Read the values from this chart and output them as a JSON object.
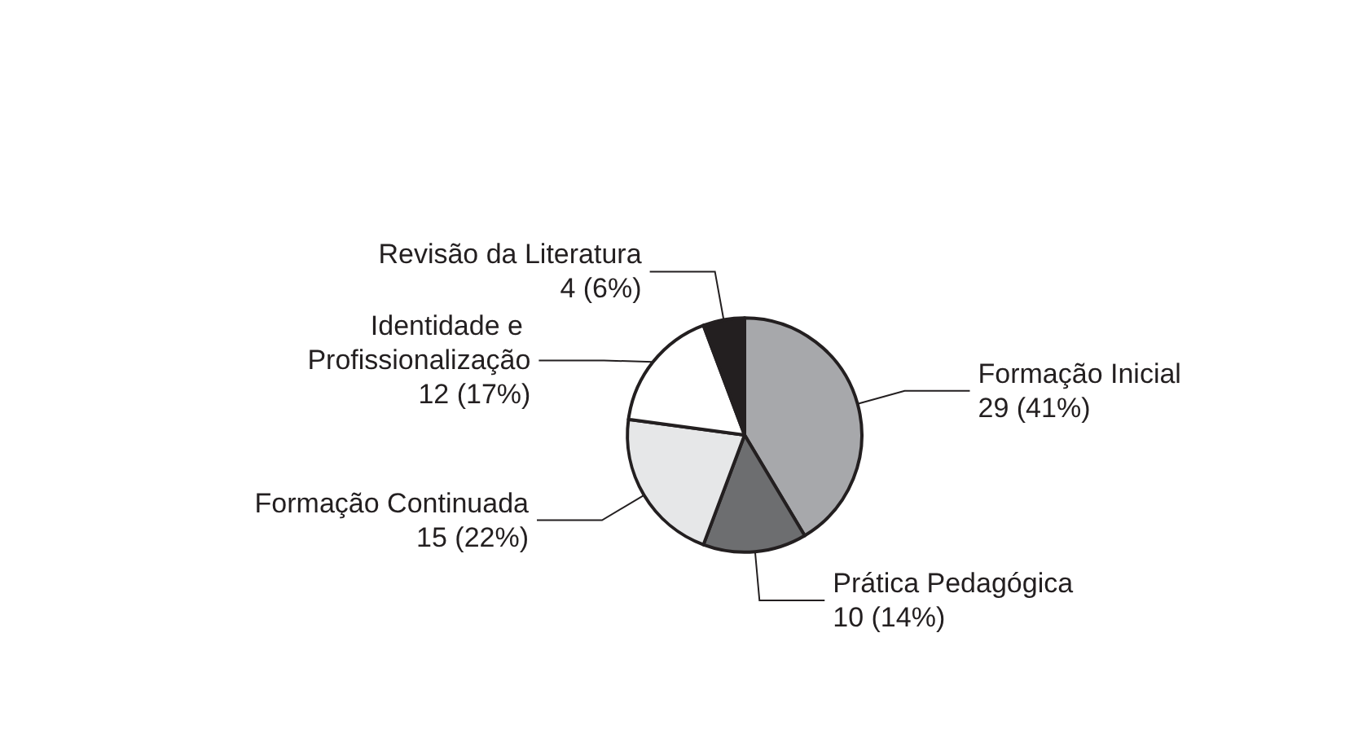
{
  "chart_data": {
    "type": "pie",
    "categories": [
      "Formação Inicial",
      "Prática Pedagógica",
      "Formação Continuada",
      "Identidade e Profissionalização",
      "Revisão da Literatura"
    ],
    "values": [
      29,
      10,
      15,
      12,
      4
    ],
    "value_labels": [
      "29 (41%)",
      "10 (14%)",
      "15 (22%)",
      "12 (17%)",
      "4 (6%)"
    ],
    "colors": [
      "#a7a8ab",
      "#6d6e70",
      "#e6e7e8",
      "#ffffff",
      "#231f20"
    ],
    "legend": false
  }
}
